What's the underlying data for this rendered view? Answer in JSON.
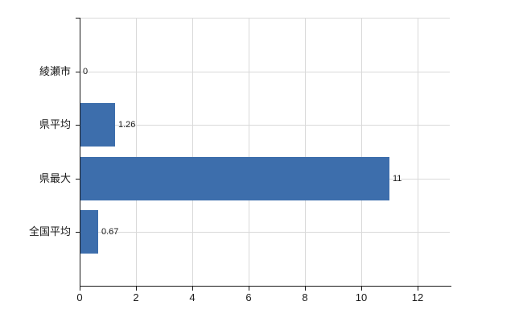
{
  "chart_data": {
    "type": "bar",
    "orientation": "horizontal",
    "title": "",
    "categories": [
      "綾瀬市",
      "県平均",
      "県最大",
      "全国平均"
    ],
    "values": [
      0,
      1.26,
      11,
      0.67
    ],
    "value_labels": [
      "0",
      "1.26",
      "11",
      "0.67"
    ],
    "x_ticks": [
      0,
      2,
      4,
      6,
      8,
      10,
      12
    ],
    "x_tick_labels": [
      "0",
      "2",
      "4",
      "6",
      "8",
      "10",
      "12"
    ],
    "xlim": [
      0,
      13.1
    ],
    "grid": true,
    "legend": "none",
    "bar_color": "#3d6eac",
    "gridline_color": "#d9d9d9",
    "axis_color": "#1a1a1a",
    "text_color": "#1a1a1a"
  }
}
